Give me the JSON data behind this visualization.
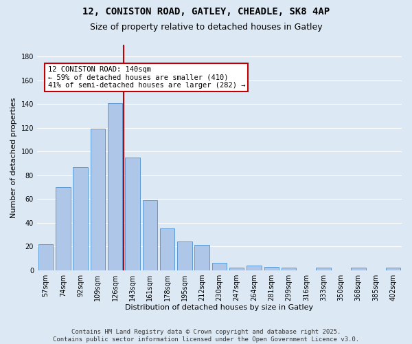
{
  "title_line1": "12, CONISTON ROAD, GATLEY, CHEADLE, SK8 4AP",
  "title_line2": "Size of property relative to detached houses in Gatley",
  "xlabel": "Distribution of detached houses by size in Gatley",
  "ylabel": "Number of detached properties",
  "categories": [
    "57sqm",
    "74sqm",
    "92sqm",
    "109sqm",
    "126sqm",
    "143sqm",
    "161sqm",
    "178sqm",
    "195sqm",
    "212sqm",
    "230sqm",
    "247sqm",
    "264sqm",
    "281sqm",
    "299sqm",
    "316sqm",
    "333sqm",
    "350sqm",
    "368sqm",
    "385sqm",
    "402sqm"
  ],
  "values": [
    22,
    70,
    87,
    119,
    141,
    95,
    59,
    35,
    24,
    21,
    6,
    2,
    4,
    3,
    2,
    0,
    2,
    0,
    2,
    0,
    2
  ],
  "bar_color": "#aec6e8",
  "bar_edgecolor": "#5b9bd5",
  "vline_color": "#c00000",
  "annotation_text": "12 CONISTON ROAD: 140sqm\n← 59% of detached houses are smaller (410)\n41% of semi-detached houses are larger (282) →",
  "annotation_box_edgecolor": "#c00000",
  "annotation_box_facecolor": "white",
  "ylim": [
    0,
    190
  ],
  "yticks": [
    0,
    20,
    40,
    60,
    80,
    100,
    120,
    140,
    160,
    180
  ],
  "background_color": "#dce9f5",
  "grid_color": "white",
  "footer_text": "Contains HM Land Registry data © Crown copyright and database right 2025.\nContains public sector information licensed under the Open Government Licence v3.0.",
  "title_fontsize": 10,
  "subtitle_fontsize": 9,
  "axis_label_fontsize": 8,
  "tick_fontsize": 7,
  "footer_fontsize": 6.5,
  "annotation_fontsize": 7.5
}
